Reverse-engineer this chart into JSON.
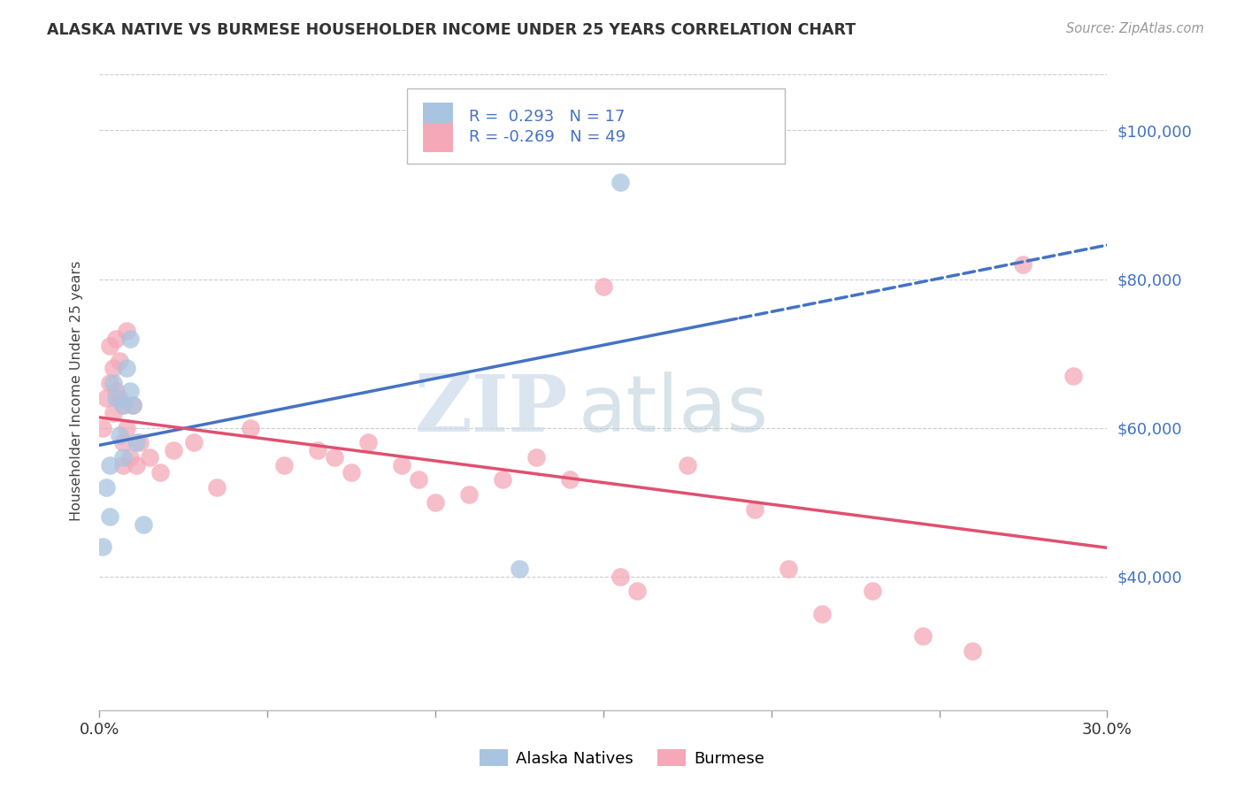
{
  "title": "ALASKA NATIVE VS BURMESE HOUSEHOLDER INCOME UNDER 25 YEARS CORRELATION CHART",
  "source": "Source: ZipAtlas.com",
  "ylabel": "Householder Income Under 25 years",
  "legend_label1": "Alaska Natives",
  "legend_label2": "Burmese",
  "r1": 0.293,
  "n1": 17,
  "r2": -0.269,
  "n2": 49,
  "ytick_labels": [
    "$40,000",
    "$60,000",
    "$80,000",
    "$100,000"
  ],
  "ytick_values": [
    40000,
    60000,
    80000,
    100000
  ],
  "ymin": 22000,
  "ymax": 108000,
  "xmin": 0.0,
  "xmax": 0.3,
  "color_blue": "#a8c4e0",
  "color_pink": "#f4a8b8",
  "line_blue": "#4472c4",
  "line_pink": "#e05070",
  "alaska_x": [
    0.001,
    0.002,
    0.003,
    0.003,
    0.004,
    0.005,
    0.006,
    0.007,
    0.007,
    0.008,
    0.009,
    0.009,
    0.01,
    0.011,
    0.013,
    0.125,
    0.155
  ],
  "alaska_y": [
    44000,
    52000,
    55000,
    48000,
    66000,
    64000,
    59000,
    63000,
    56000,
    68000,
    65000,
    72000,
    63000,
    58000,
    47000,
    41000,
    93000
  ],
  "burmese_x": [
    0.001,
    0.002,
    0.003,
    0.003,
    0.004,
    0.004,
    0.005,
    0.005,
    0.006,
    0.006,
    0.007,
    0.007,
    0.007,
    0.008,
    0.008,
    0.009,
    0.01,
    0.011,
    0.012,
    0.015,
    0.018,
    0.022,
    0.028,
    0.035,
    0.045,
    0.055,
    0.065,
    0.07,
    0.075,
    0.08,
    0.09,
    0.095,
    0.1,
    0.11,
    0.12,
    0.13,
    0.14,
    0.15,
    0.155,
    0.16,
    0.175,
    0.195,
    0.205,
    0.215,
    0.23,
    0.245,
    0.26,
    0.275,
    0.29
  ],
  "burmese_y": [
    60000,
    64000,
    66000,
    71000,
    68000,
    62000,
    65000,
    72000,
    69000,
    64000,
    63000,
    58000,
    55000,
    60000,
    73000,
    56000,
    63000,
    55000,
    58000,
    56000,
    54000,
    57000,
    58000,
    52000,
    60000,
    55000,
    57000,
    56000,
    54000,
    58000,
    55000,
    53000,
    50000,
    51000,
    53000,
    56000,
    53000,
    79000,
    40000,
    38000,
    55000,
    49000,
    41000,
    35000,
    38000,
    32000,
    30000,
    82000,
    67000
  ]
}
